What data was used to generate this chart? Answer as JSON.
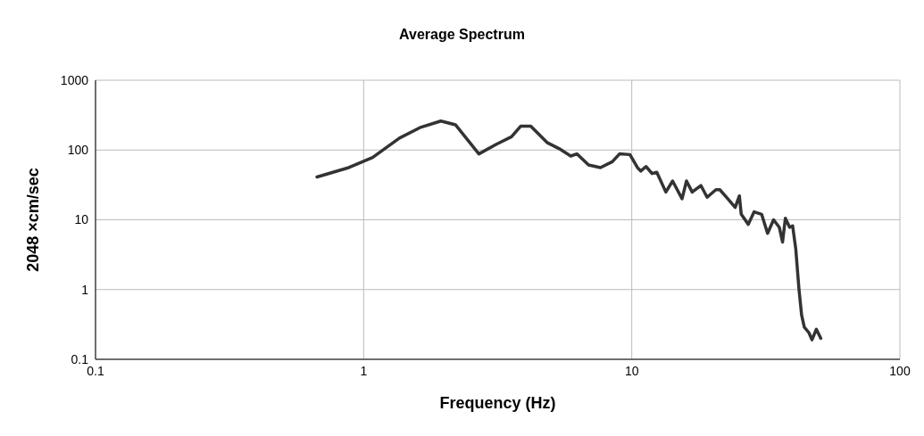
{
  "chart_data": {
    "type": "line",
    "title": "Average Spectrum",
    "xlabel": "Frequency (Hz)",
    "ylabel": "2048 ×cm/sec",
    "log": "xy",
    "grid": true,
    "legend": false,
    "marker": "none",
    "line_style": "solid",
    "xlim": [
      0.1,
      100
    ],
    "xticks": [
      0.1,
      1,
      10,
      100
    ],
    "ylim": [
      0.1,
      1000
    ],
    "yticks": [
      0.1,
      1,
      10,
      100,
      1000
    ],
    "series": [
      {
        "color": "#333333",
        "x": [
          0.67,
          0.88,
          1.08,
          1.36,
          1.62,
          1.94,
          2.2,
          2.69,
          3.14,
          3.56,
          3.85,
          4.2,
          4.83,
          5.35,
          5.92,
          6.24,
          6.9,
          7.64,
          8.46,
          9.0,
          9.84,
          10.5,
          10.8,
          11.3,
          11.9,
          12.4,
          13.4,
          14.2,
          15.4,
          16.0,
          16.8,
          18.1,
          19.1,
          20.6,
          21.3,
          22.8,
          24.3,
          25.2,
          25.6,
          27.2,
          28.6,
          30.5,
          32.1,
          33.8,
          35.5,
          36.5,
          37.4,
          38.8,
          39.8,
          40.9,
          42,
          43,
          44,
          45.8,
          47,
          48.8,
          50.7
        ],
        "values": [
          41,
          56,
          78,
          148,
          209,
          260,
          230,
          88,
          122,
          155,
          219,
          219,
          128,
          105,
          82,
          88,
          61,
          56,
          68,
          88,
          86,
          56,
          50,
          58,
          46,
          48,
          25,
          36,
          20,
          36,
          25,
          31,
          21,
          27,
          27,
          20,
          15,
          22,
          12,
          8.6,
          13,
          12,
          6.4,
          10,
          7.8,
          4.8,
          10.5,
          7.8,
          8.2,
          3.8,
          1.05,
          0.43,
          0.29,
          0.24,
          0.19,
          0.27,
          0.2
        ]
      }
    ]
  }
}
